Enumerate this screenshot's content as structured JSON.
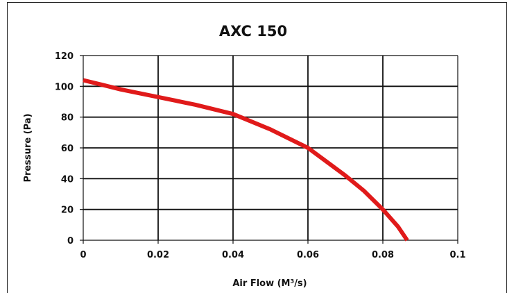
{
  "chart_data": {
    "type": "line",
    "title": "AXC 150",
    "xlabel": "Air Flow (M³/s)",
    "ylabel": "Pressure (Pa)",
    "xlim": [
      0,
      0.1
    ],
    "ylim": [
      0,
      120
    ],
    "x_ticks": [
      "0",
      "0.02",
      "0.04",
      "0.06",
      "0.08",
      "0.1"
    ],
    "y_ticks": [
      "120",
      "100",
      "80",
      "60",
      "40",
      "20",
      "0"
    ],
    "grid": true,
    "legend": "none",
    "series": [
      {
        "color": "#e01a1a",
        "x": [
          0,
          0.005,
          0.01,
          0.02,
          0.03,
          0.04,
          0.05,
          0.06,
          0.065,
          0.07,
          0.075,
          0.08,
          0.084,
          0.0865
        ],
        "y": [
          104,
          101,
          98,
          93,
          88,
          82,
          72,
          60,
          51,
          42,
          32,
          20,
          9,
          0
        ]
      }
    ]
  }
}
